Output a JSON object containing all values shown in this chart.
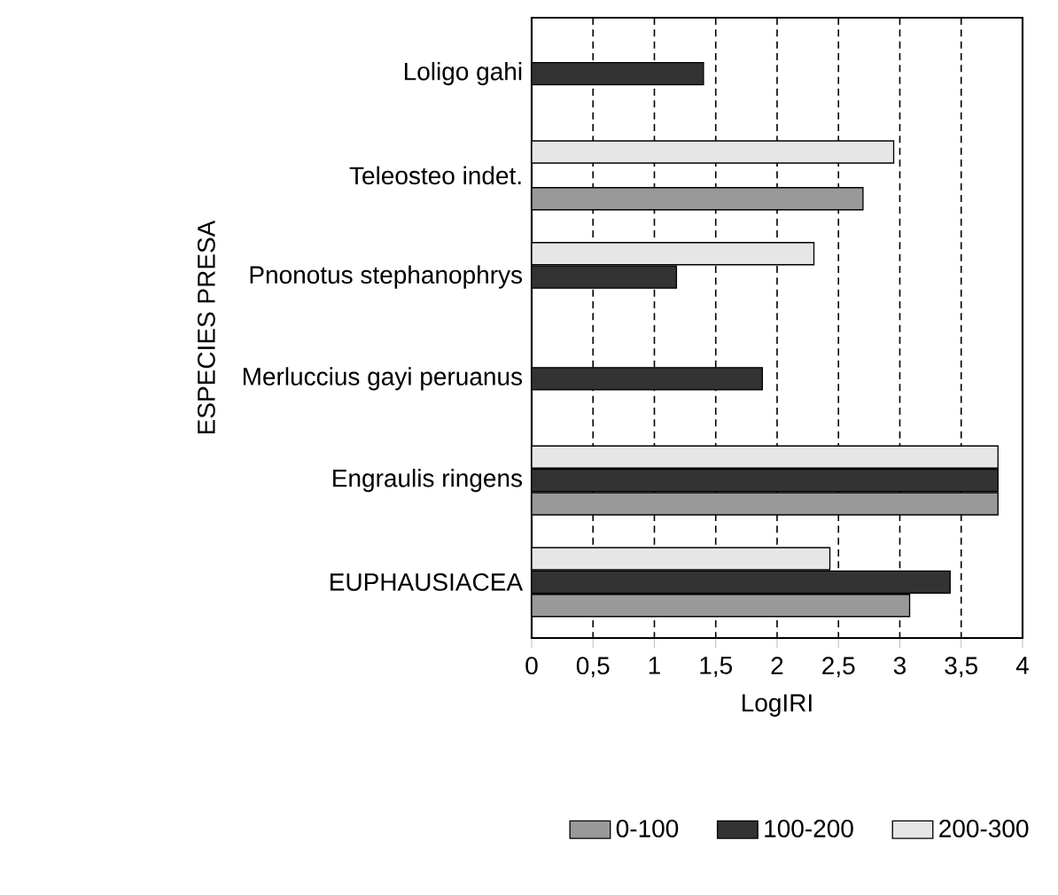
{
  "chart_data": {
    "type": "bar",
    "orientation": "horizontal",
    "xlabel": "LogIRI",
    "ylabel": "ESPECIES PRESA",
    "categories": [
      "Loligo gahi",
      "Teleosteo indet.",
      "Pnonotus stephanophrys",
      "Merluccius gayi peruanus",
      "Engraulis ringens",
      "EUPHAUSIACEA"
    ],
    "series": [
      {
        "name": "0-100",
        "color": "#999999",
        "values": [
          null,
          2.7,
          null,
          null,
          3.8,
          3.08
        ]
      },
      {
        "name": "100-200",
        "color": "#333333",
        "values": [
          1.4,
          null,
          1.18,
          1.88,
          3.8,
          3.41
        ]
      },
      {
        "name": "200-300",
        "color": "#e6e6e6",
        "values": [
          null,
          2.95,
          2.3,
          null,
          3.8,
          2.43
        ]
      }
    ],
    "xlim": [
      0,
      4
    ],
    "xticks": [
      0,
      {
        "value": 0.5,
        "label": "0,5"
      },
      1,
      {
        "value": 1.5,
        "label": "1,5"
      },
      2,
      {
        "value": 2.5,
        "label": "2,5"
      },
      3,
      {
        "value": 3.5,
        "label": "3,5"
      },
      4
    ],
    "grid": "x",
    "legend": "bottom"
  }
}
